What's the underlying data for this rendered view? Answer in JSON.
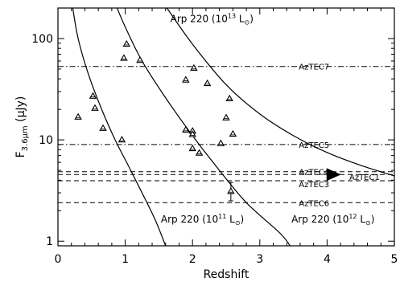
{
  "chart_data": {
    "type": "scatter",
    "title": "",
    "xlabel": "Redshift",
    "ylabel_parts": {
      "main": "F",
      "sub": "3.6μm",
      "unit": " (μJy)"
    },
    "xlim": [
      0,
      5
    ],
    "ylim": [
      0.9,
      200
    ],
    "yscale": "log",
    "grid": false,
    "x_ticks": [
      {
        "v": 0,
        "label": "0"
      },
      {
        "v": 1,
        "label": "1"
      },
      {
        "v": 2,
        "label": "2"
      },
      {
        "v": 3,
        "label": "3"
      },
      {
        "v": 4,
        "label": "4"
      },
      {
        "v": 5,
        "label": "5"
      }
    ],
    "y_ticks": [
      {
        "v": 1,
        "label": "1"
      },
      {
        "v": 10,
        "label": "10"
      },
      {
        "v": 100,
        "label": "100"
      }
    ],
    "sources": [
      {
        "x": 0.3,
        "y": 16.8
      },
      {
        "x": 0.52,
        "y": 27
      },
      {
        "x": 0.55,
        "y": 20.5
      },
      {
        "x": 0.67,
        "y": 13
      },
      {
        "x": 0.95,
        "y": 10
      },
      {
        "x": 1.02,
        "y": 88
      },
      {
        "x": 0.98,
        "y": 64
      },
      {
        "x": 1.22,
        "y": 61
      },
      {
        "x": 1.9,
        "y": 39
      },
      {
        "x": 2.02,
        "y": 51
      },
      {
        "x": 2.22,
        "y": 36
      },
      {
        "x": 1.9,
        "y": 12.5
      },
      {
        "x": 2.0,
        "y": 12.2
      },
      {
        "x": 2.0,
        "y": 11.3
      },
      {
        "x": 2.0,
        "y": 8.2
      },
      {
        "x": 2.1,
        "y": 7.4
      },
      {
        "x": 2.42,
        "y": 9.2
      },
      {
        "x": 2.5,
        "y": 16.5
      },
      {
        "x": 2.55,
        "y": 25.5
      },
      {
        "x": 2.6,
        "y": 11.4
      },
      {
        "x": 2.57,
        "y": 3.1,
        "yerr_low": 2.5,
        "yerr_high": 3.8
      }
    ],
    "azTEC_lines": [
      {
        "label": "AzTEC7",
        "y": 53,
        "style": "dashdot"
      },
      {
        "label": "AzTEC5",
        "y": 9,
        "style": "dashdot"
      },
      {
        "label": "AzTEC4",
        "y": 4.85,
        "style": "dashed"
      },
      {
        "label": "AzTEC1",
        "y": 4.55,
        "style": "dashed"
      },
      {
        "label": "AzTEC3",
        "y": 3.95,
        "style": "dashed"
      },
      {
        "label": "AzTEC6",
        "y": 2.4,
        "style": "dashed"
      }
    ],
    "azTEC1_point": {
      "x": 4.1,
      "y": 4.55
    },
    "tracks": [
      {
        "label": "Arp 220 (10",
        "exp": "11",
        "suffix": " L",
        "points": [
          [
            0.22,
            200
          ],
          [
            0.3,
            100
          ],
          [
            0.45,
            45
          ],
          [
            0.65,
            20
          ],
          [
            0.85,
            10
          ],
          [
            1.05,
            5.5
          ],
          [
            1.25,
            3
          ],
          [
            1.45,
            1.6
          ],
          [
            1.6,
            0.9
          ]
        ]
      },
      {
        "label": "Arp 220 (10",
        "exp": "12",
        "suffix": " L",
        "points": [
          [
            0.88,
            200
          ],
          [
            1.0,
            130
          ],
          [
            1.25,
            60
          ],
          [
            1.6,
            26
          ],
          [
            2.0,
            11
          ],
          [
            2.4,
            5
          ],
          [
            2.8,
            2.4
          ],
          [
            3.3,
            1.2
          ],
          [
            3.45,
            0.9
          ]
        ]
      },
      {
        "label": "Arp 220 (10",
        "exp": "13",
        "suffix": " L",
        "points": [
          [
            1.62,
            200
          ],
          [
            2.0,
            88
          ],
          [
            2.5,
            35
          ],
          [
            3.0,
            18
          ],
          [
            3.5,
            11
          ],
          [
            4.0,
            7.5
          ],
          [
            4.5,
            5.6
          ],
          [
            5.0,
            4.4
          ]
        ]
      }
    ]
  }
}
